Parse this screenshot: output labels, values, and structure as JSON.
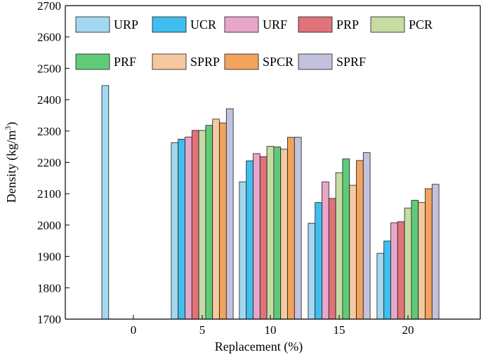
{
  "chart_data": {
    "type": "bar",
    "title": "",
    "xlabel": "Replacement (%)",
    "ylabel": "Density (kg/m³)",
    "ylabel_parts": {
      "main": "Density (kg/m",
      "sup": "3",
      "close": ")"
    },
    "ylim": [
      1700,
      2700
    ],
    "yticks": [
      1700,
      1800,
      1900,
      2000,
      2100,
      2200,
      2300,
      2400,
      2500,
      2600,
      2700
    ],
    "categories": [
      "0",
      "5",
      "10",
      "15",
      "20"
    ],
    "legend_position": "top",
    "legend_columns": 5,
    "series": [
      {
        "name": "URP",
        "color": "#a3d8f0",
        "values": [
          2445,
          2263,
          2138,
          2006,
          1910
        ]
      },
      {
        "name": "UCR",
        "color": "#3fbfef",
        "values": [
          null,
          2274,
          2205,
          2072,
          1949
        ]
      },
      {
        "name": "URF",
        "color": "#e8a6c9",
        "values": [
          null,
          2281,
          2228,
          2138,
          2007
        ]
      },
      {
        "name": "PRP",
        "color": "#e0737a",
        "values": [
          null,
          2302,
          2218,
          2085,
          2011
        ]
      },
      {
        "name": "PCR",
        "color": "#c6dca3",
        "values": [
          null,
          2302,
          2251,
          2167,
          2054
        ]
      },
      {
        "name": "PRF",
        "color": "#5fcb79",
        "values": [
          null,
          2318,
          2249,
          2211,
          2079
        ]
      },
      {
        "name": "SPRP",
        "color": "#f5c8a0",
        "values": [
          null,
          2338,
          2242,
          2127,
          2072
        ]
      },
      {
        "name": "SPCR",
        "color": "#f2a35d",
        "values": [
          null,
          2326,
          2280,
          2206,
          2116
        ]
      },
      {
        "name": "SPRF",
        "color": "#c3c2dc",
        "values": [
          null,
          2371,
          2280,
          2231,
          2130
        ]
      }
    ]
  }
}
